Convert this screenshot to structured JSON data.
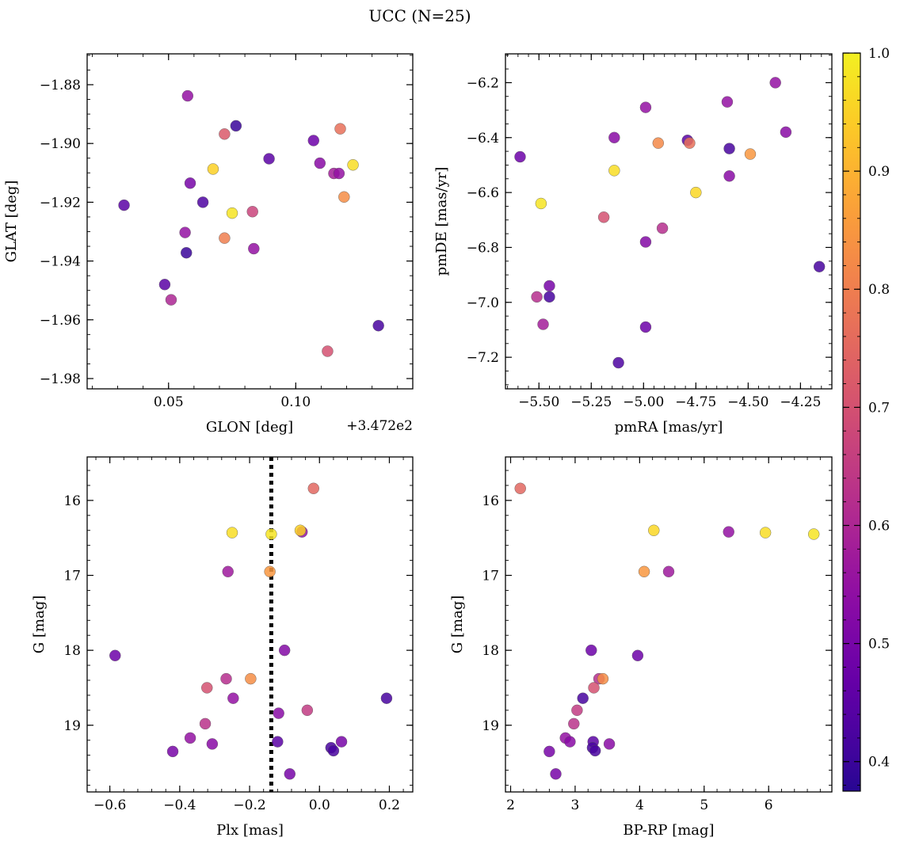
{
  "figure": {
    "title": "UCC (N=25)"
  },
  "colorbar": {
    "range": [
      0.375,
      1.0
    ],
    "ticks": [
      0.4,
      0.5,
      0.6,
      0.7,
      0.8,
      0.9,
      1.0
    ],
    "tick_labels": [
      "0.4",
      "0.5",
      "0.6",
      "0.7",
      "0.8",
      "0.9",
      "1.0"
    ],
    "colormap": "plasma"
  },
  "chart_data": [
    {
      "type": "scatter",
      "xlabel": "GLON [deg]",
      "ylabel": "GLAT [deg]",
      "offset_text": "+3.472e2",
      "xlim": [
        0.018,
        0.146
      ],
      "ylim": [
        -1.9835,
        -1.8695
      ],
      "xticks": [
        0.05,
        0.1
      ],
      "xtick_labels": [
        "0.05",
        "0.10"
      ],
      "yticks": [
        -1.88,
        -1.9,
        -1.92,
        -1.94,
        -1.96,
        -1.98
      ],
      "ytick_labels": [
        "−1.88",
        "−1.90",
        "−1.92",
        "−1.94",
        "−1.96",
        "−1.98"
      ],
      "points": [
        {
          "x": 0.0575,
          "y": -1.8838,
          "c": 0.55
        },
        {
          "x": 0.0765,
          "y": -1.894,
          "c": 0.4
        },
        {
          "x": 0.072,
          "y": -1.8968,
          "c": 0.72
        },
        {
          "x": 0.1175,
          "y": -1.895,
          "c": 0.77
        },
        {
          "x": 0.107,
          "y": -1.899,
          "c": 0.48
        },
        {
          "x": 0.0895,
          "y": -1.9052,
          "c": 0.45
        },
        {
          "x": 0.1095,
          "y": -1.9067,
          "c": 0.53
        },
        {
          "x": 0.1225,
          "y": -1.9073,
          "c": 0.97
        },
        {
          "x": 0.0675,
          "y": -1.9087,
          "c": 0.95
        },
        {
          "x": 0.115,
          "y": -1.9102,
          "c": 0.58
        },
        {
          "x": 0.117,
          "y": -1.9102,
          "c": 0.55
        },
        {
          "x": 0.0585,
          "y": -1.9135,
          "c": 0.5
        },
        {
          "x": 0.119,
          "y": -1.9182,
          "c": 0.83
        },
        {
          "x": 0.0635,
          "y": -1.92,
          "c": 0.43
        },
        {
          "x": 0.0325,
          "y": -1.921,
          "c": 0.45
        },
        {
          "x": 0.075,
          "y": -1.9237,
          "c": 0.98
        },
        {
          "x": 0.083,
          "y": -1.9232,
          "c": 0.67
        },
        {
          "x": 0.0565,
          "y": -1.9303,
          "c": 0.55
        },
        {
          "x": 0.072,
          "y": -1.9322,
          "c": 0.8
        },
        {
          "x": 0.057,
          "y": -1.9372,
          "c": 0.4
        },
        {
          "x": 0.0835,
          "y": -1.9358,
          "c": 0.55
        },
        {
          "x": 0.0485,
          "y": -1.948,
          "c": 0.45
        },
        {
          "x": 0.051,
          "y": -1.9532,
          "c": 0.6
        },
        {
          "x": 0.1325,
          "y": -1.962,
          "c": 0.42
        },
        {
          "x": 0.1125,
          "y": -1.9707,
          "c": 0.7
        }
      ]
    },
    {
      "type": "scatter",
      "xlabel": "pmRA [mas/yr]",
      "ylabel": "pmDE [mas/yr]",
      "xlim": [
        -5.66,
        -4.1
      ],
      "ylim": [
        -7.315,
        -6.095
      ],
      "xticks": [
        -5.5,
        -5.25,
        -5.0,
        -4.75,
        -4.5,
        -4.25
      ],
      "xtick_labels": [
        "−5.50",
        "−5.25",
        "−5.00",
        "−4.75",
        "−4.50",
        "−4.25"
      ],
      "yticks": [
        -6.2,
        -6.4,
        -6.6,
        -6.8,
        -7.0,
        -7.2
      ],
      "ytick_labels": [
        "−6.2",
        "−6.4",
        "−6.6",
        "−6.8",
        "−7.0",
        "−7.2"
      ],
      "points": [
        {
          "x": -4.37,
          "y": -6.2,
          "c": 0.55
        },
        {
          "x": -4.6,
          "y": -6.27,
          "c": 0.55
        },
        {
          "x": -4.99,
          "y": -6.29,
          "c": 0.55
        },
        {
          "x": -4.32,
          "y": -6.38,
          "c": 0.53
        },
        {
          "x": -5.14,
          "y": -6.4,
          "c": 0.53
        },
        {
          "x": -4.79,
          "y": -6.41,
          "c": 0.45
        },
        {
          "x": -4.93,
          "y": -6.42,
          "c": 0.82
        },
        {
          "x": -4.78,
          "y": -6.42,
          "c": 0.77
        },
        {
          "x": -4.59,
          "y": -6.44,
          "c": 0.42
        },
        {
          "x": -5.59,
          "y": -6.47,
          "c": 0.48
        },
        {
          "x": -4.49,
          "y": -6.46,
          "c": 0.85
        },
        {
          "x": -5.14,
          "y": -6.52,
          "c": 0.97
        },
        {
          "x": -4.59,
          "y": -6.54,
          "c": 0.53
        },
        {
          "x": -4.75,
          "y": -6.6,
          "c": 0.96
        },
        {
          "x": -5.49,
          "y": -6.64,
          "c": 0.98
        },
        {
          "x": -5.19,
          "y": -6.69,
          "c": 0.7
        },
        {
          "x": -4.91,
          "y": -6.73,
          "c": 0.62
        },
        {
          "x": -4.99,
          "y": -6.78,
          "c": 0.52
        },
        {
          "x": -4.16,
          "y": -6.87,
          "c": 0.42
        },
        {
          "x": -5.45,
          "y": -6.94,
          "c": 0.5
        },
        {
          "x": -5.45,
          "y": -6.98,
          "c": 0.42
        },
        {
          "x": -5.51,
          "y": -6.98,
          "c": 0.62
        },
        {
          "x": -5.48,
          "y": -7.08,
          "c": 0.58
        },
        {
          "x": -4.99,
          "y": -7.09,
          "c": 0.48
        },
        {
          "x": -5.12,
          "y": -7.22,
          "c": 0.43
        }
      ]
    },
    {
      "type": "scatter",
      "xlabel": "Plx [mas]",
      "ylabel": "G [mag]",
      "xlim": [
        -0.665,
        0.267
      ],
      "ylim": [
        19.89,
        15.42
      ],
      "xticks": [
        -0.6,
        -0.4,
        -0.2,
        0.0,
        0.2
      ],
      "xtick_labels": [
        "−0.6",
        "−0.4",
        "−0.2",
        "0.0",
        "0.2"
      ],
      "yticks": [
        16,
        17,
        18,
        19
      ],
      "ytick_labels": [
        "16",
        "17",
        "18",
        "19"
      ],
      "vline": -0.138,
      "points": [
        {
          "x": -0.017,
          "y": 15.84,
          "c": 0.75
        },
        {
          "x": -0.25,
          "y": 16.43,
          "c": 0.97
        },
        {
          "x": -0.138,
          "y": 16.45,
          "c": 0.98
        },
        {
          "x": -0.05,
          "y": 16.42,
          "c": 0.55
        },
        {
          "x": -0.055,
          "y": 16.4,
          "c": 0.95
        },
        {
          "x": -0.262,
          "y": 16.95,
          "c": 0.57
        },
        {
          "x": -0.142,
          "y": 16.95,
          "c": 0.85
        },
        {
          "x": -0.585,
          "y": 18.07,
          "c": 0.48
        },
        {
          "x": -0.1,
          "y": 18.0,
          "c": 0.52
        },
        {
          "x": -0.197,
          "y": 18.38,
          "c": 0.83
        },
        {
          "x": -0.267,
          "y": 18.38,
          "c": 0.62
        },
        {
          "x": -0.322,
          "y": 18.5,
          "c": 0.7
        },
        {
          "x": -0.247,
          "y": 18.64,
          "c": 0.55
        },
        {
          "x": 0.192,
          "y": 18.64,
          "c": 0.42
        },
        {
          "x": -0.035,
          "y": 18.8,
          "c": 0.65
        },
        {
          "x": -0.117,
          "y": 18.84,
          "c": 0.53
        },
        {
          "x": -0.327,
          "y": 18.98,
          "c": 0.63
        },
        {
          "x": -0.37,
          "y": 19.17,
          "c": 0.55
        },
        {
          "x": -0.307,
          "y": 19.25,
          "c": 0.53
        },
        {
          "x": -0.12,
          "y": 19.22,
          "c": 0.45
        },
        {
          "x": 0.063,
          "y": 19.22,
          "c": 0.5
        },
        {
          "x": -0.42,
          "y": 19.35,
          "c": 0.5
        },
        {
          "x": 0.033,
          "y": 19.3,
          "c": 0.42
        },
        {
          "x": 0.04,
          "y": 19.34,
          "c": 0.42
        },
        {
          "x": -0.085,
          "y": 19.65,
          "c": 0.5
        }
      ]
    },
    {
      "type": "scatter",
      "xlabel": "BP-RP [mag]",
      "ylabel": "G [mag]",
      "xlim": [
        1.92,
        6.98
      ],
      "ylim": [
        19.89,
        15.42
      ],
      "xticks": [
        2,
        3,
        4,
        5,
        6
      ],
      "xtick_labels": [
        "2",
        "3",
        "4",
        "5",
        "6"
      ],
      "yticks": [
        16,
        17,
        18,
        19
      ],
      "ytick_labels": [
        "16",
        "17",
        "18",
        "19"
      ],
      "points": [
        {
          "x": 2.15,
          "y": 15.84,
          "c": 0.75
        },
        {
          "x": 4.22,
          "y": 16.4,
          "c": 0.96
        },
        {
          "x": 5.38,
          "y": 16.42,
          "c": 0.55
        },
        {
          "x": 5.95,
          "y": 16.43,
          "c": 0.97
        },
        {
          "x": 6.7,
          "y": 16.45,
          "c": 0.98
        },
        {
          "x": 4.07,
          "y": 16.95,
          "c": 0.85
        },
        {
          "x": 4.45,
          "y": 16.95,
          "c": 0.57
        },
        {
          "x": 3.25,
          "y": 18.0,
          "c": 0.48
        },
        {
          "x": 3.97,
          "y": 18.07,
          "c": 0.48
        },
        {
          "x": 3.37,
          "y": 18.38,
          "c": 0.62
        },
        {
          "x": 3.43,
          "y": 18.38,
          "c": 0.83
        },
        {
          "x": 3.29,
          "y": 18.5,
          "c": 0.7
        },
        {
          "x": 3.12,
          "y": 18.64,
          "c": 0.42
        },
        {
          "x": 3.03,
          "y": 18.8,
          "c": 0.65
        },
        {
          "x": 2.98,
          "y": 18.98,
          "c": 0.63
        },
        {
          "x": 2.85,
          "y": 19.17,
          "c": 0.55
        },
        {
          "x": 2.92,
          "y": 19.22,
          "c": 0.53
        },
        {
          "x": 3.28,
          "y": 19.22,
          "c": 0.45
        },
        {
          "x": 3.53,
          "y": 19.25,
          "c": 0.53
        },
        {
          "x": 3.27,
          "y": 19.3,
          "c": 0.42
        },
        {
          "x": 3.31,
          "y": 19.34,
          "c": 0.42
        },
        {
          "x": 2.6,
          "y": 19.35,
          "c": 0.5
        },
        {
          "x": 2.7,
          "y": 19.65,
          "c": 0.5
        }
      ]
    }
  ]
}
